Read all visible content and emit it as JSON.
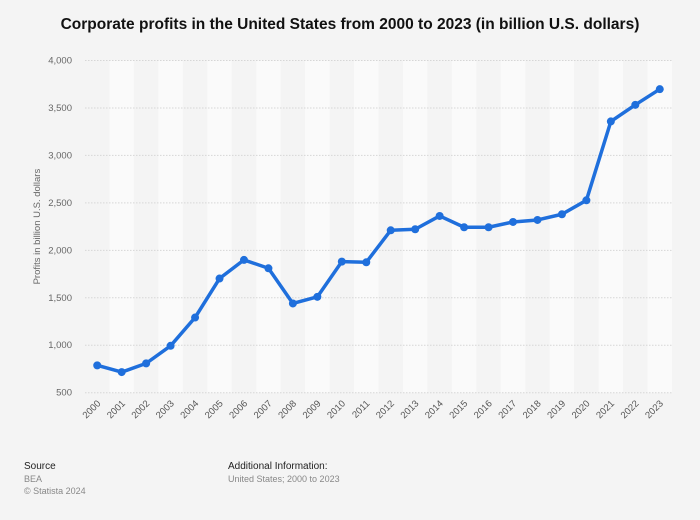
{
  "chart_data": {
    "type": "line",
    "title": "Corporate profits in the United States from 2000 to 2023 (in billion U.S. dollars)",
    "xlabel": "",
    "ylabel": "Profits in billion U.S. dollars",
    "ylim": [
      500,
      4000
    ],
    "yticks": [
      500,
      1000,
      1500,
      2000,
      2500,
      3000,
      3500,
      4000
    ],
    "ytick_labels": [
      "500",
      "1,000",
      "1,500",
      "2,000",
      "2,500",
      "3,000",
      "3,500",
      "4,000"
    ],
    "grid": true,
    "categories": [
      "2000",
      "2001",
      "2002",
      "2003",
      "2004",
      "2005",
      "2006",
      "2007",
      "2008",
      "2009",
      "2010",
      "2011",
      "2012",
      "2013",
      "2014",
      "2015",
      "2016",
      "2017",
      "2018",
      "2019",
      "2020",
      "2021",
      "2022",
      "2023"
    ],
    "values": [
      788,
      717,
      809,
      994,
      1292,
      1703,
      1899,
      1811,
      1440,
      1510,
      1881,
      1874,
      2211,
      2222,
      2362,
      2243,
      2243,
      2299,
      2320,
      2380,
      2527,
      3358,
      3533,
      3698
    ],
    "line_color": "#1f6fdc"
  },
  "footer": {
    "source_heading": "Source",
    "source_lines": [
      "BEA",
      "© Statista 2024"
    ],
    "info_heading": "Additional Information:",
    "info_text": "United States; 2000 to 2023"
  }
}
